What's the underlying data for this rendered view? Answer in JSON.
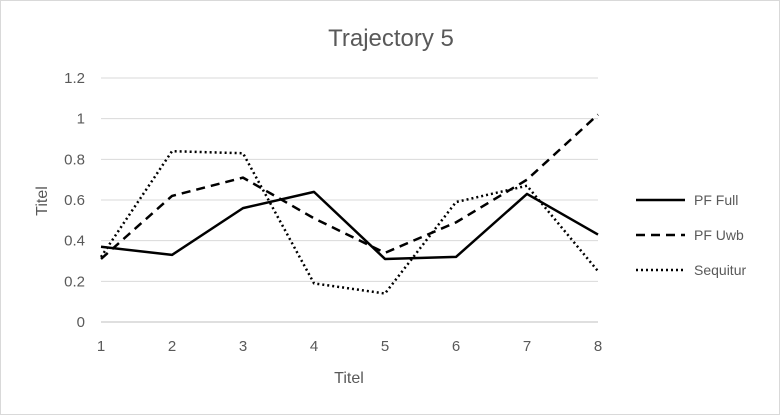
{
  "chart_data": {
    "type": "line",
    "title": "Trajectory 5",
    "xlabel": "Titel",
    "ylabel": "Titel",
    "x": [
      1,
      2,
      3,
      4,
      5,
      6,
      7,
      8
    ],
    "xlim": [
      1,
      8
    ],
    "ylim": [
      0,
      1.2
    ],
    "yticks": [
      "0",
      "0.2",
      "0.4",
      "0.6",
      "0.8",
      "1",
      "1.2"
    ],
    "yticks_values": [
      0,
      0.2,
      0.4,
      0.6,
      0.8,
      1.0,
      1.2
    ],
    "grid": true,
    "legend_position": "right",
    "series": [
      {
        "name": "PF Full",
        "style": "solid",
        "color": "#000000",
        "values": [
          0.37,
          0.33,
          0.56,
          0.64,
          0.31,
          0.32,
          0.63,
          0.43
        ]
      },
      {
        "name": "PF Uwb",
        "style": "dashed",
        "color": "#000000",
        "values": [
          0.31,
          0.62,
          0.71,
          0.51,
          0.34,
          0.49,
          0.7,
          1.02
        ]
      },
      {
        "name": "Sequitur",
        "style": "dotted",
        "color": "#000000",
        "values": [
          0.32,
          0.84,
          0.83,
          0.19,
          0.14,
          0.59,
          0.67,
          0.25
        ]
      }
    ]
  }
}
